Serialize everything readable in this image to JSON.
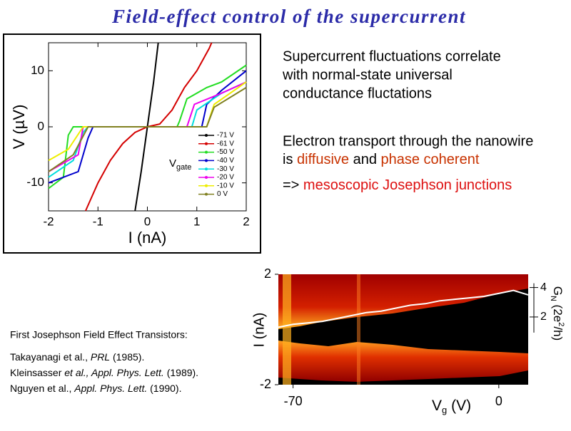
{
  "title": "Field-effect control of the supercurrent",
  "title_color": "#2b2ba8",
  "text_block_1": [
    "Supercurrent fluctuations correlate",
    "with normal-state universal",
    "conductance fluctations"
  ],
  "text_block_2": {
    "line1": "Electron transport through the nanowire",
    "is": "is ",
    "diffusive": "diffusive",
    "and": " and ",
    "phase_coherent": "phase coherent"
  },
  "text_block_3": {
    "arrow": "=> ",
    "conclusion": "mesoscopic Josephson junctions"
  },
  "references": {
    "heading": "First Josephson Field Effect Transistors:",
    "items": [
      {
        "authors": "Takayanagi et al., ",
        "journal": "PRL",
        "year": " (1985)."
      },
      {
        "authors": "Kleinsasser ",
        "etal": "et al., Appl. Phys. Lett.",
        "year": " (1989)."
      },
      {
        "authors": "Nguyen et al., ",
        "journal": "Appl. Phys. Lett.",
        "year": " (1990)."
      }
    ]
  },
  "chart_data": [
    {
      "type": "line",
      "xlabel": "I (nA)",
      "ylabel": "V (µV)",
      "xlim": [
        -2,
        2
      ],
      "ylim": [
        -15,
        15
      ],
      "xticks": [
        -2,
        -1,
        0,
        1,
        2
      ],
      "yticks": [
        -10,
        0,
        10
      ],
      "legend_title": "V",
      "legend_title_sub": "gate",
      "series": [
        {
          "name": "-71 V",
          "color": "#000000",
          "x": [
            -0.25,
            -0.125,
            0,
            0.125,
            0.22
          ],
          "values": [
            -15,
            -8,
            0,
            8,
            15
          ]
        },
        {
          "name": "-61 V",
          "color": "#d40000",
          "x": [
            -1.25,
            -1,
            -0.75,
            -0.5,
            -0.25,
            0,
            0.25,
            0.5,
            0.75,
            1,
            1.25,
            1.3
          ],
          "values": [
            -15,
            -10,
            -6,
            -3,
            -1,
            0,
            0.5,
            3,
            7,
            10,
            14,
            15
          ]
        },
        {
          "name": "-50 V",
          "color": "#22dd22",
          "x": [
            -2,
            -1.7,
            -1.6,
            -1.5,
            0,
            0.6,
            0.65,
            0.8,
            1.2,
            1.5,
            2
          ],
          "values": [
            -11,
            -9,
            -1.5,
            0,
            0,
            0,
            1,
            5,
            7,
            8,
            11
          ]
        },
        {
          "name": "-40 V",
          "color": "#0000cc",
          "x": [
            -2,
            -1.4,
            -1.2,
            -1.1,
            0,
            1.1,
            1.2,
            1.5,
            2
          ],
          "values": [
            -10,
            -8,
            -2,
            0,
            0,
            0,
            4,
            6.5,
            10
          ]
        },
        {
          "name": "-30 V",
          "color": "#00dddd",
          "x": [
            -2,
            -1.5,
            -1.3,
            -1.2,
            0,
            0.9,
            1,
            1.5,
            2
          ],
          "values": [
            -9,
            -6,
            -1,
            0,
            0,
            0,
            3,
            6,
            8
          ]
        },
        {
          "name": "-20 V",
          "color": "#ee00ee",
          "x": [
            -2,
            -1.4,
            -1.3,
            0,
            0.8,
            0.95,
            1.5,
            2
          ],
          "values": [
            -8,
            -5,
            0,
            0,
            0,
            4,
            6,
            8
          ]
        },
        {
          "name": "-10 V",
          "color": "#eeee00",
          "x": [
            -2,
            -1.6,
            -1.3,
            0,
            1.2,
            1.35,
            2
          ],
          "values": [
            -6,
            -4,
            0,
            0,
            0,
            4,
            8
          ]
        },
        {
          "name": "0 V",
          "color": "#808020",
          "x": [
            -2,
            -1.5,
            -1.2,
            0,
            1.2,
            1.35,
            2
          ],
          "values": [
            -8,
            -5,
            0,
            0,
            0,
            3.5,
            7
          ]
        }
      ]
    },
    {
      "type": "line",
      "ylabel": "I (nA)",
      "xlabel": "V",
      "xlabel_sub": "g",
      "xlabel_unit": " (V)",
      "y2label": "G",
      "y2label_sub": "N",
      "y2label_a": " (2e",
      "y2label_sup": "2",
      "y2label_b": "/h)",
      "xlim": [
        -75,
        10
      ],
      "ylim": [
        -2,
        2
      ],
      "y2lim": [
        -2.6,
        4.9
      ],
      "xticks": [
        -70,
        0
      ],
      "yticks": [
        -2,
        2
      ],
      "y2ticks": [
        2,
        4
      ],
      "series": [
        {
          "color": "#ffffff",
          "axis": "y2",
          "x": [
            -75,
            -70,
            -65,
            -60,
            -55,
            -50,
            -45,
            -40,
            -35,
            -30,
            -25,
            -20,
            -15,
            -10,
            -5,
            0,
            5,
            10
          ],
          "values": [
            1.3,
            1.5,
            1.6,
            1.7,
            1.9,
            2.1,
            2.3,
            2.4,
            2.6,
            2.8,
            2.9,
            3.1,
            3.2,
            3.3,
            3.4,
            3.6,
            3.8,
            3.5
          ]
        }
      ]
    }
  ]
}
